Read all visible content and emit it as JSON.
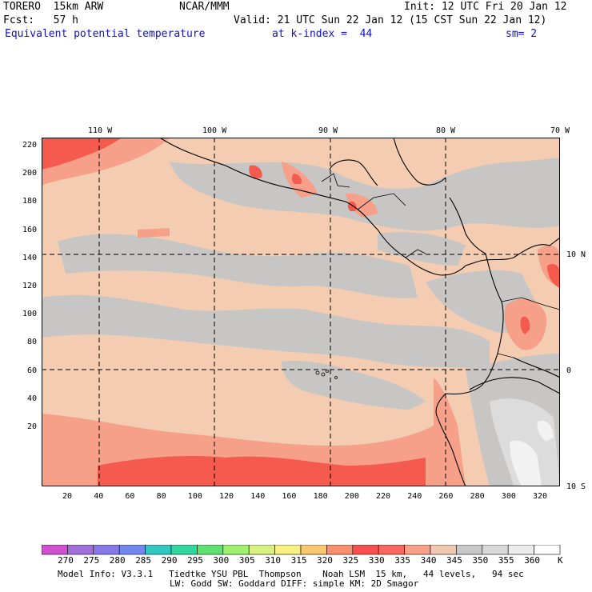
{
  "header": {
    "model": "TORERO  15km ARW",
    "org": "NCAR/MMM",
    "init": "Init: 12 UTC Fri 20 Jan 12",
    "forecast": "Fcst:   57 h",
    "valid": "Valid: 21 UTC Sun 22 Jan 12 (15 CST Sun 22 Jan 12)",
    "field": "Equivalent potential temperature",
    "kindex": "at k-index =  44",
    "smoothing": "sm= 2"
  },
  "map": {
    "lon_labels": [
      "110 W",
      "100 W",
      "90 W",
      "80 W",
      "70 W"
    ],
    "lat_labels": [
      "10 N",
      "0",
      "10 S"
    ],
    "y_ticks": [
      "220",
      "200",
      "180",
      "160",
      "140",
      "120",
      "100",
      "80",
      "60",
      "40",
      "20"
    ],
    "x_ticks": [
      "20",
      "40",
      "60",
      "80",
      "100",
      "120",
      "140",
      "160",
      "180",
      "200",
      "220",
      "240",
      "260",
      "280",
      "300",
      "320"
    ]
  },
  "colorbar": {
    "labels": [
      "270",
      "275",
      "280",
      "285",
      "290",
      "295",
      "300",
      "305",
      "310",
      "315",
      "320",
      "325",
      "330",
      "335",
      "340",
      "345",
      "350",
      "355",
      "360"
    ],
    "unit": "K",
    "colors": [
      "#d050d0",
      "#a070d8",
      "#8878e8",
      "#7088f0",
      "#30c8c0",
      "#30d8a0",
      "#60e070",
      "#a0f070",
      "#d8f080",
      "#f8f080",
      "#f8c870",
      "#f89070",
      "#f85050",
      "#f86860",
      "#f8a088",
      "#f0c8b0",
      "#c8c8c8",
      "#d8d8d8",
      "#ececec",
      "#ffffff"
    ]
  },
  "footer": {
    "line1": "Model Info: V3.3.1   Tiedtke YSU PBL  Thompson    Noah LSM  15 km,   44 levels,   94 sec",
    "line2": "LW: Godd SW: Goddard DIFF: simple KM: 2D Smagor"
  }
}
